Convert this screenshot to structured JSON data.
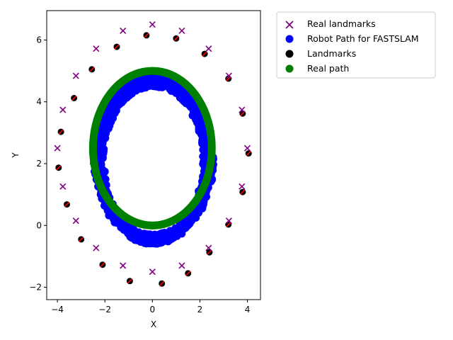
{
  "chart_data": {
    "type": "scatter",
    "title": "",
    "xlabel": "X",
    "ylabel": "Y",
    "xlim": [
      -4.45,
      4.55
    ],
    "ylim": [
      -2.4,
      6.95
    ],
    "xticks": [
      -4,
      -2,
      0,
      2,
      4
    ],
    "xtick_labels": [
      "−4",
      "−2",
      "0",
      "2",
      "4"
    ],
    "yticks": [
      -2,
      0,
      2,
      4,
      6
    ],
    "ytick_labels": [
      "−2",
      "0",
      "2",
      "4",
      "6"
    ],
    "grid": false,
    "legend_position": "outside-top-right",
    "legend": [
      {
        "label": "Real landmarks",
        "marker": "x",
        "color": "#800080"
      },
      {
        "label": "Robot Path for FASTSLAM",
        "marker": "circle",
        "color": "#0000ff"
      },
      {
        "label": "Landmarks",
        "marker": "circle",
        "color": "#000000"
      },
      {
        "label": "Real path",
        "marker": "circle",
        "color": "#008000"
      }
    ],
    "series": [
      {
        "name": "Real landmarks",
        "marker": "x",
        "color": "#800080",
        "x": [
          0.0,
          1.24,
          2.37,
          3.22,
          3.77,
          4.0,
          3.77,
          3.22,
          2.37,
          1.24,
          0.0,
          -1.24,
          -2.37,
          -3.22,
          -3.77,
          -4.0,
          -3.77,
          -3.22,
          -2.37,
          -1.24
        ],
        "y": [
          6.5,
          6.3,
          5.72,
          4.84,
          3.74,
          2.5,
          1.26,
          0.15,
          -0.73,
          -1.3,
          -1.5,
          -1.3,
          -0.73,
          0.15,
          1.26,
          2.5,
          3.74,
          4.84,
          5.72,
          6.3
        ]
      },
      {
        "name": "Landmarks",
        "marker": "circle",
        "color": "#000000",
        "x": [
          -0.25,
          1.0,
          2.2,
          3.2,
          3.8,
          4.05,
          3.8,
          3.2,
          2.4,
          1.5,
          0.4,
          -0.95,
          -2.1,
          -3.0,
          -3.6,
          -3.95,
          -3.85,
          -3.3,
          -2.55,
          -1.5
        ],
        "y": [
          6.15,
          6.05,
          5.55,
          4.75,
          3.62,
          2.33,
          1.08,
          0.03,
          -0.87,
          -1.55,
          -1.88,
          -1.8,
          -1.27,
          -0.45,
          0.68,
          1.87,
          3.03,
          4.12,
          5.05,
          5.78
        ]
      },
      {
        "name": "Robot Path for FASTSLAM",
        "marker": "circle",
        "color": "#0000ff",
        "shape": "noisy ellipse",
        "center": [
          0.05,
          2.1
        ],
        "radius_x": 2.3,
        "radius_y": 2.55,
        "spread": 0.16
      },
      {
        "name": "Real path",
        "marker": "circle",
        "color": "#008000",
        "shape": "ellipse",
        "center": [
          0.0,
          2.5
        ],
        "radius_x": 2.5,
        "radius_y": 2.5
      }
    ]
  }
}
